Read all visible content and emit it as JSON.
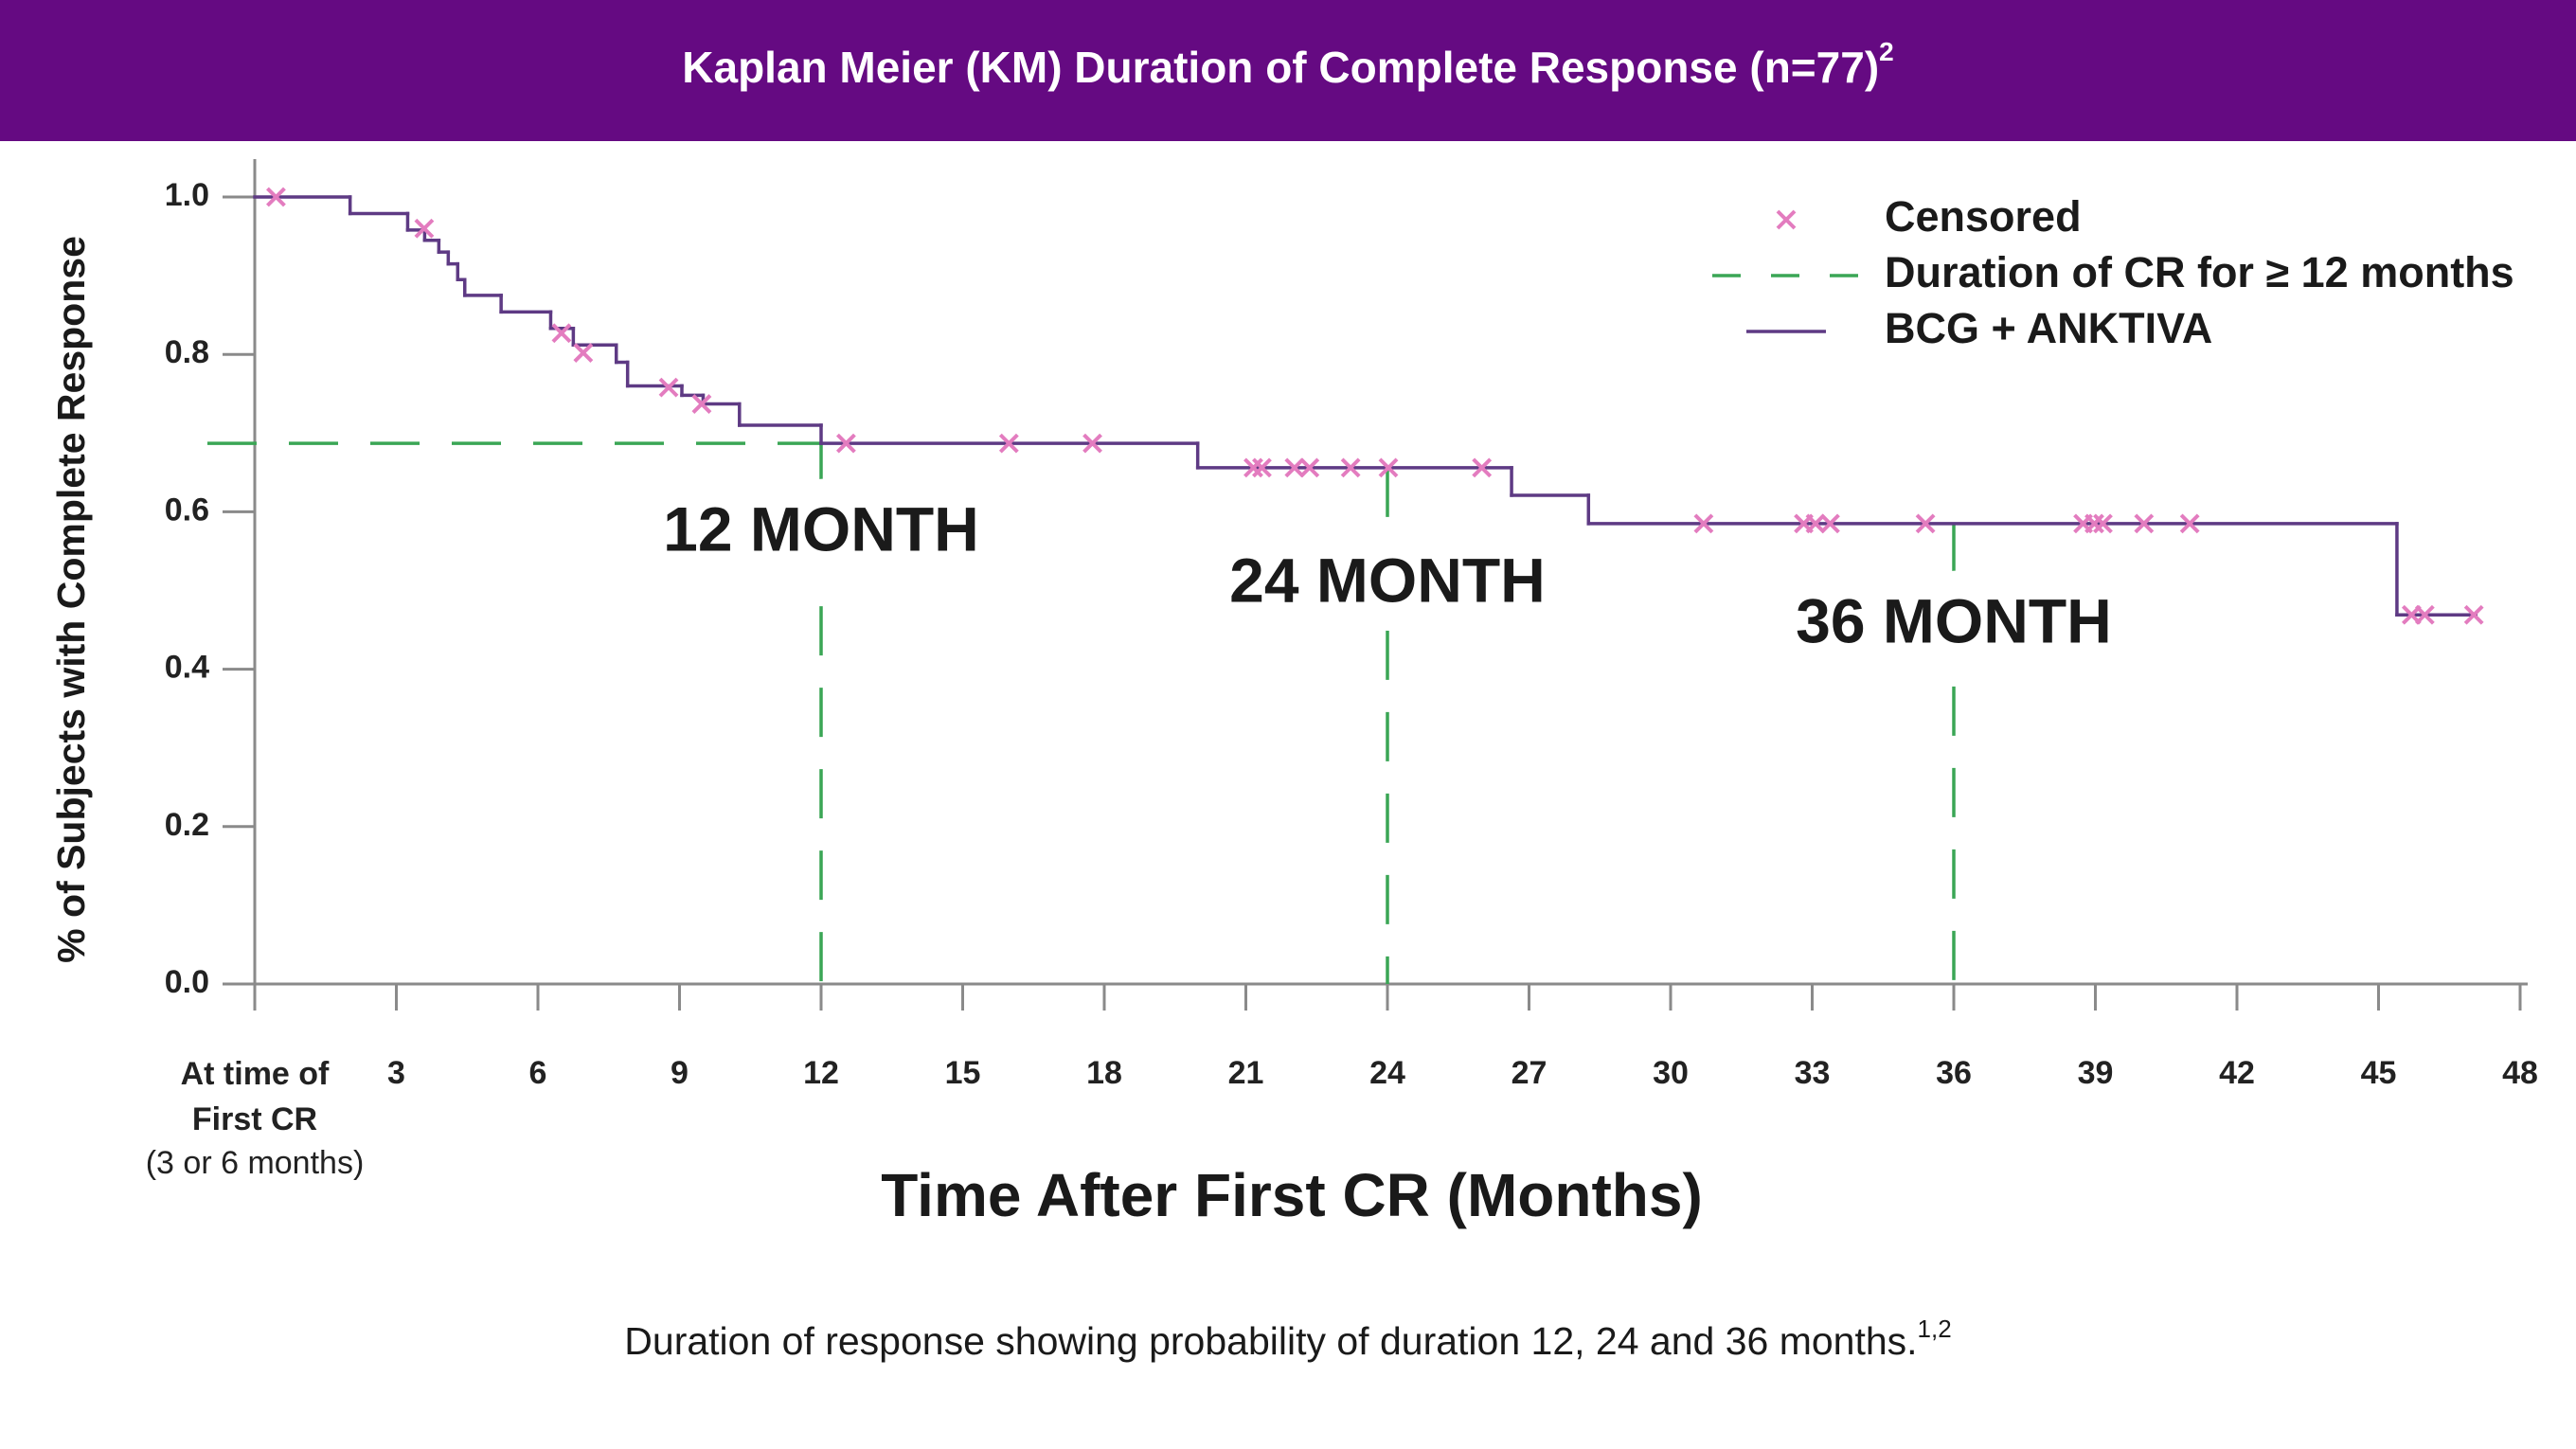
{
  "chart_data": {
    "type": "step",
    "title": "Kaplan Meier (KM) Duration of Complete Response (n=77)",
    "title_sup": "2",
    "xlabel": "Time After First CR (Months)",
    "ylabel": "% of Subjects with Complete Response",
    "xlim": [
      0,
      48
    ],
    "ylim": [
      0,
      1.0
    ],
    "xticks": [
      {
        "value": 0,
        "label": "At time of First CR"
      },
      3,
      6,
      9,
      12,
      15,
      18,
      21,
      24,
      27,
      30,
      33,
      36,
      39,
      42,
      45,
      48
    ],
    "x_tick_note": "(3 or 6 months)",
    "yticks": [
      {
        "value": 0,
        "label": "0.0"
      },
      0.2,
      0.4,
      0.6,
      0.8,
      {
        "value": 1,
        "label": "1.0"
      }
    ],
    "series": [
      {
        "name": "BCG + ANKTIVA",
        "color": "#5e3a84",
        "x": [
          0,
          2.02,
          3.24,
          3.6,
          3.9,
          4.1,
          4.3,
          4.45,
          5.22,
          6.27,
          6.75,
          7.66,
          7.9,
          9.05,
          9.5,
          10.27,
          12.0,
          19.98,
          26.63,
          28.26,
          45.39,
          47.06
        ],
        "values": [
          1.0,
          0.979,
          0.958,
          0.945,
          0.93,
          0.915,
          0.895,
          0.875,
          0.854,
          0.833,
          0.812,
          0.79,
          0.76,
          0.748,
          0.737,
          0.71,
          0.687,
          0.656,
          0.621,
          0.585,
          0.469,
          0.469
        ]
      }
    ],
    "censored": {
      "name": "Censored",
      "color": "#e37cbf",
      "x": [
        0.45,
        3.59,
        6.5,
        6.96,
        8.77,
        9.47,
        12.53,
        15.98,
        17.75,
        21.16,
        21.34,
        22.03,
        22.35,
        23.22,
        24.02,
        26.0,
        30.7,
        32.82,
        33.07,
        33.38,
        35.4,
        38.74,
        38.98,
        39.16,
        40.03,
        41.0,
        45.7,
        45.98,
        47.02
      ],
      "values": [
        1.0,
        0.96,
        0.827,
        0.802,
        0.758,
        0.737,
        0.687,
        0.687,
        0.687,
        0.656,
        0.656,
        0.656,
        0.656,
        0.656,
        0.656,
        0.656,
        0.585,
        0.585,
        0.585,
        0.585,
        0.585,
        0.585,
        0.585,
        0.585,
        0.585,
        0.585,
        0.469,
        0.469,
        0.469
      ]
    },
    "reference": {
      "name": "Duration of CR for ≥ 12 months",
      "color": "#3aa655",
      "y": 0.687,
      "x": [
        12,
        24,
        36
      ],
      "labels": [
        "12 MONTH",
        "24 MONTH",
        "36 MONTH"
      ]
    },
    "caption": "Duration of response showing probability of duration 12, 24 and 36 months.",
    "caption_sup": "1,2"
  }
}
